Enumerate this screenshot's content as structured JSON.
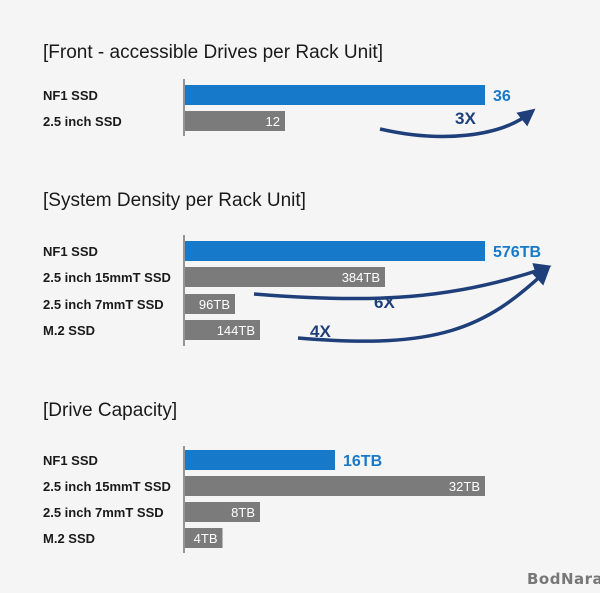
{
  "colors": {
    "highlight": "#1679c9",
    "base": "#7b7b7b",
    "arrow": "#1e3f7a",
    "background": "#f5f5f5"
  },
  "watermark": "BodNara",
  "chart_data": [
    {
      "type": "bar",
      "orientation": "horizontal",
      "title": "[Front - accessible Drives per Rack Unit]",
      "categories": [
        "NF1 SSD",
        "2.5 inch SSD"
      ],
      "values": [
        36,
        12
      ],
      "value_labels": [
        "36",
        "12"
      ],
      "highlight_index": 0,
      "xlim": [
        0,
        36
      ],
      "annotations": [
        {
          "text": "3X",
          "from": 1,
          "to": 0
        }
      ]
    },
    {
      "type": "bar",
      "orientation": "horizontal",
      "title": "[System Density per Rack Unit]",
      "categories": [
        "NF1 SSD",
        "2.5 inch 15mmT SSD",
        "2.5 inch 7mmT SSD",
        "M.2 SSD"
      ],
      "values": [
        576,
        384,
        96,
        144
      ],
      "value_labels": [
        "576TB",
        "384TB",
        "96TB",
        "144TB"
      ],
      "highlight_index": 0,
      "xlim": [
        0,
        576
      ],
      "annotations": [
        {
          "text": "6X",
          "from": 2,
          "to": 0
        },
        {
          "text": "4X",
          "from": 3,
          "to": 0
        }
      ]
    },
    {
      "type": "bar",
      "orientation": "horizontal",
      "title": "[Drive Capacity]",
      "categories": [
        "NF1 SSD",
        "2.5 inch 15mmT SSD",
        "2.5 inch 7mmT SSD",
        "M.2 SSD"
      ],
      "values": [
        16,
        32,
        8,
        4
      ],
      "value_labels": [
        "16TB",
        "32TB",
        "8TB",
        "4TB"
      ],
      "highlight_index": 0,
      "xlim": [
        0,
        32
      ],
      "annotations": []
    }
  ]
}
